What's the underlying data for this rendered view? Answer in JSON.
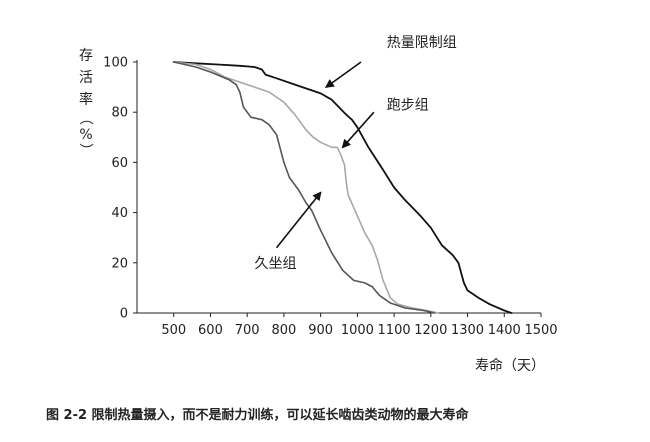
{
  "chart_data": {
    "type": "line",
    "xlabel": "寿命（天）",
    "ylabel_lines": [
      "存",
      "活",
      "率",
      "（",
      "%",
      "）"
    ],
    "xlim": [
      400,
      1500
    ],
    "ylim": [
      0,
      100
    ],
    "xticks": [
      500,
      600,
      700,
      800,
      900,
      1000,
      1100,
      1200,
      1300,
      1400,
      1500
    ],
    "yticks": [
      0,
      20,
      40,
      60,
      80,
      100
    ],
    "grid": false,
    "legend": "none",
    "series": [
      {
        "name": "热量限制组",
        "color": "#111111",
        "width": 1.8,
        "points": [
          [
            500,
            100
          ],
          [
            560,
            99.5
          ],
          [
            620,
            99
          ],
          [
            680,
            98.5
          ],
          [
            720,
            98
          ],
          [
            740,
            97
          ],
          [
            750,
            95
          ],
          [
            780,
            93.5
          ],
          [
            830,
            91
          ],
          [
            870,
            89
          ],
          [
            900,
            87.5
          ],
          [
            930,
            85
          ],
          [
            950,
            82
          ],
          [
            970,
            79
          ],
          [
            985,
            77
          ],
          [
            1000,
            74
          ],
          [
            1030,
            66
          ],
          [
            1070,
            57
          ],
          [
            1100,
            50
          ],
          [
            1130,
            45
          ],
          [
            1170,
            39
          ],
          [
            1200,
            34
          ],
          [
            1230,
            27
          ],
          [
            1260,
            23
          ],
          [
            1275,
            20
          ],
          [
            1290,
            12
          ],
          [
            1300,
            9
          ],
          [
            1330,
            6
          ],
          [
            1360,
            3.5
          ],
          [
            1400,
            1
          ],
          [
            1420,
            0
          ]
        ]
      },
      {
        "name": "跑步组",
        "color": "#a8a8a8",
        "width": 1.6,
        "points": [
          [
            500,
            100
          ],
          [
            560,
            99
          ],
          [
            600,
            97
          ],
          [
            640,
            94
          ],
          [
            680,
            92
          ],
          [
            720,
            90
          ],
          [
            760,
            88
          ],
          [
            800,
            84
          ],
          [
            830,
            79
          ],
          [
            860,
            73
          ],
          [
            880,
            70
          ],
          [
            900,
            68
          ],
          [
            930,
            66
          ],
          [
            945,
            66
          ],
          [
            955,
            63
          ],
          [
            965,
            59
          ],
          [
            970,
            52
          ],
          [
            975,
            47
          ],
          [
            990,
            42
          ],
          [
            1020,
            32
          ],
          [
            1040,
            27
          ],
          [
            1055,
            21
          ],
          [
            1070,
            13
          ],
          [
            1090,
            6
          ],
          [
            1110,
            3.5
          ],
          [
            1150,
            2
          ],
          [
            1190,
            1
          ],
          [
            1220,
            0
          ]
        ]
      },
      {
        "name": "久坐组",
        "color": "#555555",
        "width": 1.6,
        "points": [
          [
            500,
            100
          ],
          [
            560,
            98
          ],
          [
            600,
            96
          ],
          [
            650,
            93
          ],
          [
            670,
            91
          ],
          [
            680,
            88
          ],
          [
            690,
            82
          ],
          [
            710,
            78
          ],
          [
            740,
            77
          ],
          [
            760,
            75
          ],
          [
            780,
            71
          ],
          [
            800,
            60
          ],
          [
            815,
            54
          ],
          [
            840,
            49
          ],
          [
            860,
            44
          ],
          [
            875,
            41
          ],
          [
            900,
            33
          ],
          [
            930,
            24
          ],
          [
            960,
            17
          ],
          [
            990,
            13
          ],
          [
            1020,
            12
          ],
          [
            1040,
            10.5
          ],
          [
            1060,
            7
          ],
          [
            1090,
            4
          ],
          [
            1130,
            2
          ],
          [
            1180,
            1
          ],
          [
            1210,
            0
          ]
        ]
      }
    ],
    "annotations": [
      {
        "series_index": 0,
        "text": "热量限制组",
        "label_x": 1080,
        "label_y": 108,
        "arrow_from": [
          1010,
          100
        ],
        "arrow_to": [
          915,
          90
        ]
      },
      {
        "series_index": 1,
        "text": "跑步组",
        "label_x": 1080,
        "label_y": 83,
        "arrow_from": [
          1045,
          80
        ],
        "arrow_to": [
          960,
          66
        ]
      },
      {
        "series_index": 2,
        "text": "久坐组",
        "label_x": 720,
        "label_y": 20,
        "arrow_from": [
          780,
          26
        ],
        "arrow_to": [
          900,
          48
        ]
      }
    ],
    "caption": "图 2-2   限制热量摄入，而不是耐力训练，可以延长啮齿类动物的最大寿命"
  }
}
